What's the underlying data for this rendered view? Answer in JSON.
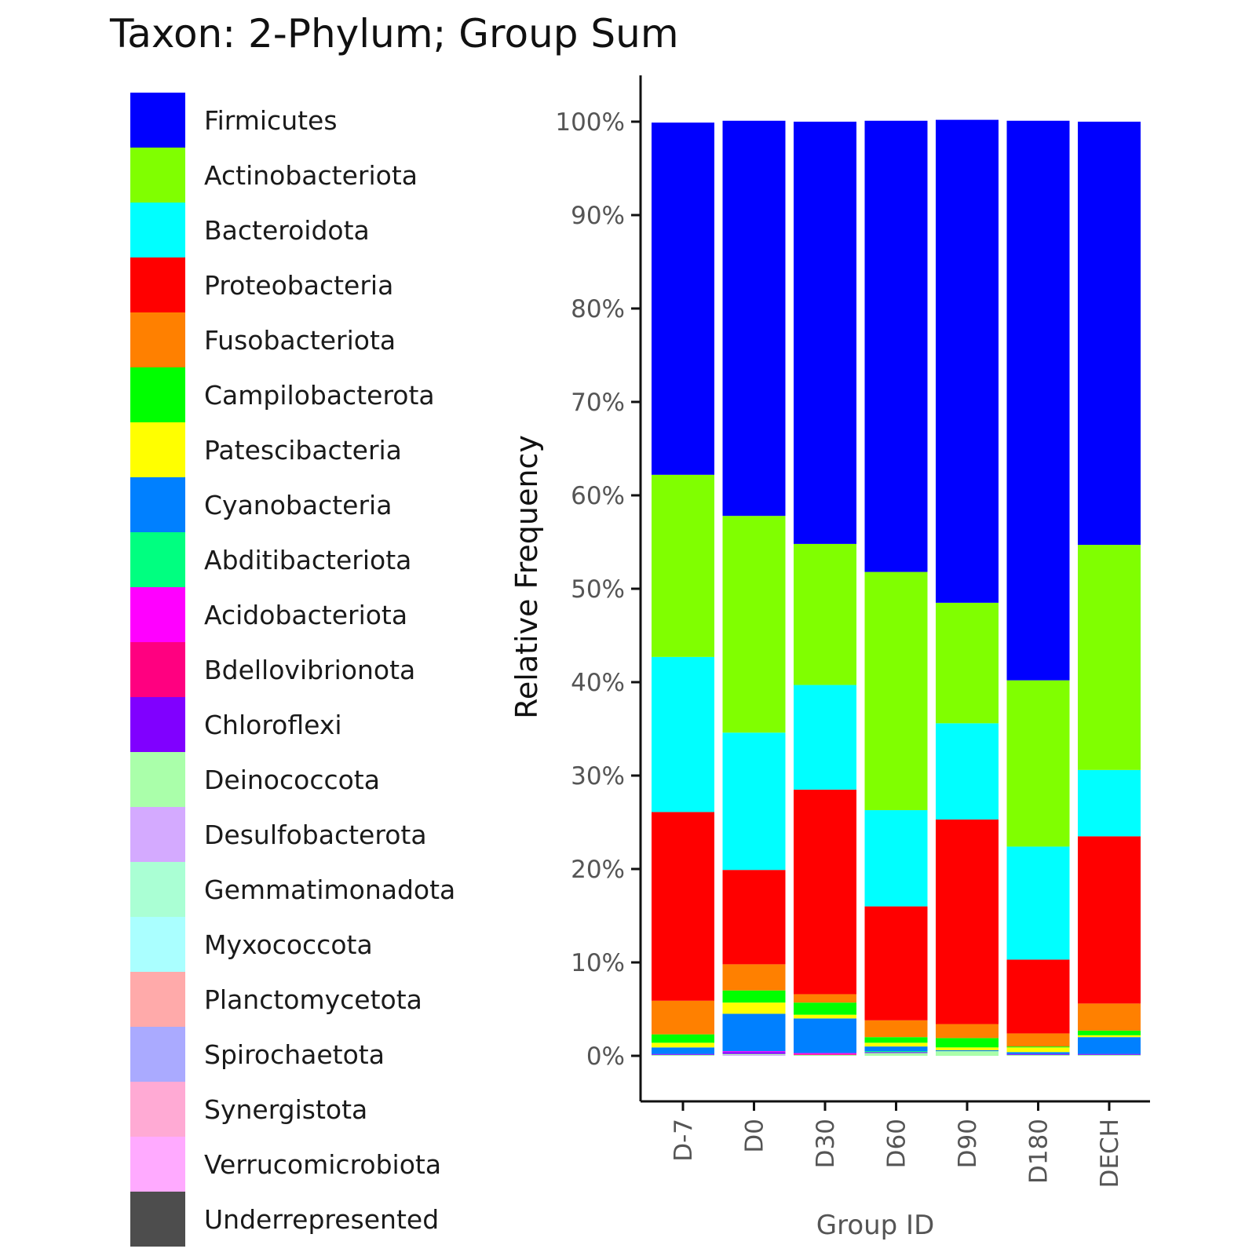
{
  "chart_data": {
    "type": "bar",
    "stacked": true,
    "title": "Taxon: 2-Phylum; Group Sum",
    "xlabel": "Group ID",
    "ylabel": "Relative Frequency",
    "ylim": [
      0,
      100
    ],
    "yticks": [
      "0%",
      "10%",
      "20%",
      "30%",
      "40%",
      "50%",
      "60%",
      "70%",
      "80%",
      "90%",
      "100%"
    ],
    "legend_position": "left",
    "categories": [
      "D-7",
      "D0",
      "D30",
      "D60",
      "D90",
      "D180",
      "DECH"
    ],
    "series": [
      {
        "name": "Underrepresented",
        "color": "#4d4d4d",
        "values": [
          0,
          0,
          0,
          0,
          0,
          0,
          0
        ]
      },
      {
        "name": "Verrucomicrobiota",
        "color": "#ffaaff",
        "values": [
          0,
          0,
          0,
          0,
          0,
          0,
          0
        ]
      },
      {
        "name": "Synergistota",
        "color": "#ffaad4",
        "values": [
          0,
          0,
          0,
          0,
          0,
          0,
          0
        ]
      },
      {
        "name": "Spirochaetota",
        "color": "#aaaaff",
        "values": [
          0,
          0,
          0,
          0,
          0,
          0,
          0
        ]
      },
      {
        "name": "Planctomycetota",
        "color": "#ffaaaa",
        "values": [
          0,
          0,
          0,
          0,
          0,
          0,
          0
        ]
      },
      {
        "name": "Myxococcota",
        "color": "#aaffff",
        "values": [
          0,
          0,
          0,
          0,
          0,
          0,
          0
        ]
      },
      {
        "name": "Gemmatimonadota",
        "color": "#aaffd4",
        "values": [
          0,
          0,
          0,
          0,
          0,
          0,
          0
        ]
      },
      {
        "name": "Desulfobacterota",
        "color": "#d4aaff",
        "values": [
          0,
          0.1,
          0,
          0,
          0,
          0,
          0
        ]
      },
      {
        "name": "Deinococcota",
        "color": "#aaffaa",
        "values": [
          0.1,
          0.1,
          0.1,
          0.3,
          0.5,
          0.1,
          0.1
        ]
      },
      {
        "name": "Chloroflexi",
        "color": "#8000ff",
        "values": [
          0.1,
          0.2,
          0,
          0.1,
          0,
          0.1,
          0.1
        ]
      },
      {
        "name": "Bdellovibrionota",
        "color": "#ff0080",
        "values": [
          0,
          0,
          0.1,
          0,
          0,
          0,
          0
        ]
      },
      {
        "name": "Acidobacteriota",
        "color": "#ff00ff",
        "values": [
          0,
          0.1,
          0.1,
          0,
          0,
          0,
          0
        ]
      },
      {
        "name": "Abditibacteriota",
        "color": "#00ff80",
        "values": [
          0,
          0,
          0,
          0.1,
          0,
          0,
          0
        ]
      },
      {
        "name": "Cyanobacteria",
        "color": "#0080ff",
        "values": [
          0.7,
          4.0,
          3.7,
          0.5,
          0.1,
          0.2,
          1.8
        ]
      },
      {
        "name": "Patescibacteria",
        "color": "#ffff00",
        "values": [
          0.5,
          1.2,
          0.4,
          0.4,
          0.3,
          0.5,
          0.2
        ]
      },
      {
        "name": "Campilobacterota",
        "color": "#00ff00",
        "values": [
          0.9,
          1.3,
          1.3,
          0.6,
          1.0,
          0.1,
          0.5
        ]
      },
      {
        "name": "Fusobacteriota",
        "color": "#ff8000",
        "values": [
          3.6,
          2.8,
          0.9,
          1.8,
          1.5,
          1.4,
          2.9
        ]
      },
      {
        "name": "Proteobacteria",
        "color": "#ff0000",
        "values": [
          20.2,
          10.1,
          21.9,
          12.2,
          21.9,
          7.9,
          17.9
        ]
      },
      {
        "name": "Bacteroidota",
        "color": "#00ffff",
        "values": [
          16.6,
          14.7,
          11.2,
          10.3,
          10.3,
          12.1,
          7.1
        ]
      },
      {
        "name": "Actinobacteriota",
        "color": "#80ff00",
        "values": [
          19.5,
          23.2,
          15.1,
          25.5,
          12.9,
          17.8,
          24.1
        ]
      },
      {
        "name": "Firmicutes",
        "color": "#0000ff",
        "values": [
          37.7,
          42.3,
          45.2,
          48.3,
          51.7,
          59.9,
          45.3
        ]
      }
    ]
  }
}
